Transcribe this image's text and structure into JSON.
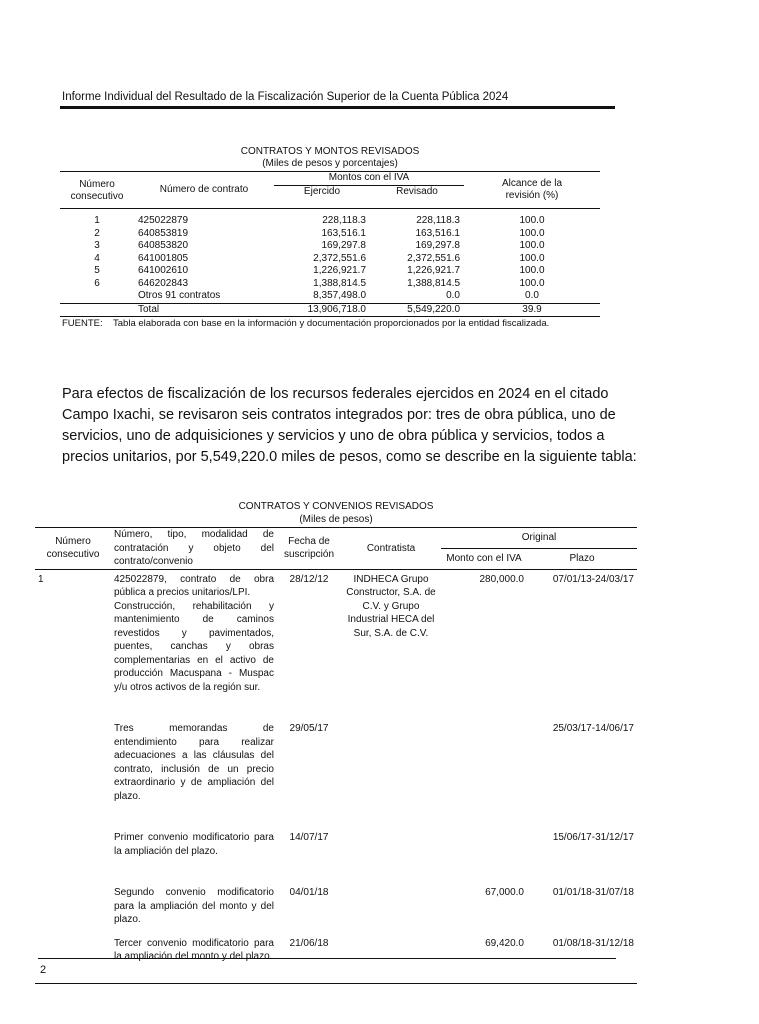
{
  "header": {
    "title": "Informe Individual del Resultado de la Fiscalización Superior de la Cuenta Pública 2024"
  },
  "table1": {
    "title": "CONTRATOS Y MONTOS REVISADOS",
    "subtitle": "(Miles de pesos y porcentajes)",
    "headers": {
      "num": "Número consecutivo",
      "contrato": "Número de contrato",
      "montos": "Montos con el IVA",
      "ejercido": "Ejercido",
      "revisado": "Revisado",
      "alcance": "Alcance de la revisión (%)"
    },
    "rows": [
      {
        "n": "1",
        "contrato": "425022879",
        "ejercido": "228,118.3",
        "revisado": "228,118.3",
        "alcance": "100.0"
      },
      {
        "n": "2",
        "contrato": "640853819",
        "ejercido": "163,516.1",
        "revisado": "163,516.1",
        "alcance": "100.0"
      },
      {
        "n": "3",
        "contrato": "640853820",
        "ejercido": "169,297.8",
        "revisado": "169,297.8",
        "alcance": "100.0"
      },
      {
        "n": "4",
        "contrato": "641001805",
        "ejercido": "2,372,551.6",
        "revisado": "2,372,551.6",
        "alcance": "100.0"
      },
      {
        "n": "5",
        "contrato": "641002610",
        "ejercido": "1,226,921.7",
        "revisado": "1,226,921.7",
        "alcance": "100.0"
      },
      {
        "n": "6",
        "contrato": "646202843",
        "ejercido": "1,388,814.5",
        "revisado": "1,388,814.5",
        "alcance": "100.0"
      },
      {
        "n": "",
        "contrato": "Otros 91 contratos",
        "ejercido": "8,357,498.0",
        "revisado": "0.0",
        "alcance": "0.0"
      }
    ],
    "total": {
      "label": "Total",
      "ejercido": "13,906,718.0",
      "revisado": "5,549,220.0",
      "alcance": "39.9"
    },
    "fuente": "FUENTE:    Tabla elaborada con base en la información y documentación proporcionados por la entidad fiscalizada."
  },
  "paragraph": "Para efectos de fiscalización de los recursos federales ejercidos en 2024 en el citado Campo Ixachi, se revisaron seis contratos integrados por: tres de obra pública, uno de servicios, uno de adquisiciones y servicios y uno de obra pública y servicios, todos a precios unitarios, por 5,549,220.0 miles de pesos, como se describe en la siguiente tabla:",
  "table2": {
    "title": "CONTRATOS Y CONVENIOS REVISADOS",
    "subtitle": "(Miles de pesos)",
    "headers": {
      "num": "Número consecutivo",
      "desc": "Número, tipo, modalidad de contratación y objeto del contrato/convenio",
      "fecha": "Fecha de suscripción",
      "contratista": "Contratista",
      "original": "Original",
      "monto": "Monto con el IVA",
      "plazo": "Plazo"
    },
    "rows": [
      {
        "n": "1",
        "desc": "425022879, contrato de obra pública a precios unitarios/LPI.",
        "desc2": "Construcción, rehabilitación y mantenimiento de caminos revestidos y pavimentados, puentes, canchas y obras complementarias en el activo de producción Macuspana - Muspac y/u otros activos de la región sur.",
        "fecha": "28/12/12",
        "contratista": "INDHECA Grupo Constructor, S.A. de C.V. y Grupo Industrial HECA del Sur, S.A. de C.V.",
        "monto": "280,000.0",
        "plazo": "07/01/13-24/03/17"
      },
      {
        "n": "",
        "desc": "Tres memorandas de entendimiento para realizar adecuaciones a las cláusulas del contrato, inclusión de un precio extraordinario y de ampliación del plazo.",
        "desc2": "",
        "fecha": "29/05/17",
        "contratista": "",
        "monto": "",
        "plazo": "25/03/17-14/06/17"
      },
      {
        "n": "",
        "desc": "Primer convenio modificatorio para la ampliación del plazo.",
        "desc2": "",
        "fecha": "14/07/17",
        "contratista": "",
        "monto": "",
        "plazo": "15/06/17-31/12/17"
      },
      {
        "n": "",
        "desc": "Segundo convenio modificatorio para la ampliación del monto y del plazo.",
        "desc2": "",
        "fecha": "04/01/18",
        "contratista": "",
        "monto": "67,000.0",
        "plazo": "01/01/18-31/07/18"
      },
      {
        "n": "",
        "desc": "Tercer convenio modificatorio para la ampliación del monto y del plazo.",
        "desc2": "",
        "fecha": "21/06/18",
        "contratista": "",
        "monto": "69,420.0",
        "plazo": "01/08/18-31/12/18"
      }
    ]
  },
  "footer": {
    "page": "2"
  }
}
